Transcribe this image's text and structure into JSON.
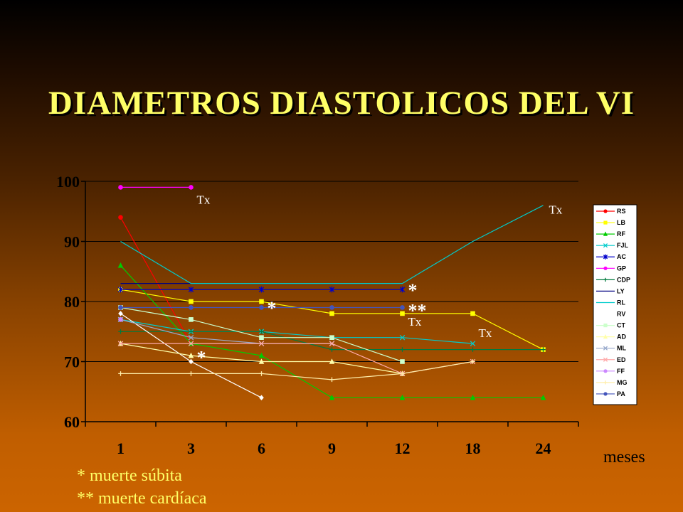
{
  "slide": {
    "title": "DIAMETROS DIASTOLICOS DEL VI",
    "x_unit": "meses",
    "footnotes": [
      "* muerte súbita",
      "** muerte cardíaca"
    ]
  },
  "chart_data": {
    "type": "line",
    "title": "DIAMETROS DIASTOLICOS DEL VI",
    "xlabel": "meses",
    "ylabel": "",
    "categories": [
      "1",
      "3",
      "6",
      "9",
      "12",
      "18",
      "24"
    ],
    "ylim": [
      60,
      100
    ],
    "yticks": [
      60,
      70,
      80,
      90,
      100
    ],
    "grid": true,
    "legend_position": "right",
    "series": [
      {
        "name": "RS",
        "color": "#ff0000",
        "marker": "circle",
        "values": [
          94,
          73,
          null,
          null,
          null,
          null,
          null
        ]
      },
      {
        "name": "LB",
        "color": "#ffff00",
        "marker": "square",
        "values": [
          82,
          80,
          80,
          78,
          78,
          78,
          72
        ]
      },
      {
        "name": "RF",
        "color": "#00cc00",
        "marker": "triangle",
        "values": [
          86,
          73,
          71,
          64,
          64,
          64,
          64
        ]
      },
      {
        "name": "FJL",
        "color": "#00cccc",
        "marker": "x",
        "values": [
          77,
          75,
          75,
          74,
          74,
          73,
          null
        ]
      },
      {
        "name": "AC",
        "color": "#0000cc",
        "marker": "star",
        "values": [
          82,
          82,
          82,
          82,
          82,
          null,
          null
        ]
      },
      {
        "name": "GP",
        "color": "#ff00ff",
        "marker": "circle",
        "values": [
          99,
          99,
          null,
          null,
          null,
          null,
          null
        ]
      },
      {
        "name": "CDP",
        "color": "#007a3d",
        "marker": "plus",
        "values": [
          75,
          75,
          75,
          72,
          72,
          72,
          72
        ]
      },
      {
        "name": "LY",
        "color": "#000080",
        "marker": "none",
        "values": [
          83,
          83,
          83,
          83,
          83,
          null,
          null
        ]
      },
      {
        "name": "RL",
        "color": "#00cccc",
        "marker": "none",
        "values": [
          90,
          83,
          83,
          83,
          83,
          90,
          96
        ]
      },
      {
        "name": "RV",
        "color": "#ffffff",
        "marker": "diamond",
        "values": [
          78,
          70,
          64,
          null,
          null,
          null,
          null
        ]
      },
      {
        "name": "CT",
        "color": "#ccffcc",
        "marker": "square",
        "values": [
          79,
          77,
          74,
          74,
          70,
          null,
          null
        ]
      },
      {
        "name": "AD",
        "color": "#ffffaa",
        "marker": "triangle",
        "values": [
          73,
          71,
          70,
          70,
          68,
          null,
          null
        ]
      },
      {
        "name": "ML",
        "color": "#99aacc",
        "marker": "x",
        "values": [
          77,
          74,
          73,
          73,
          null,
          null,
          null
        ]
      },
      {
        "name": "ED",
        "color": "#ffaaaa",
        "marker": "x",
        "values": [
          73,
          73,
          73,
          73,
          68,
          70,
          null
        ]
      },
      {
        "name": "FF",
        "color": "#cc88ff",
        "marker": "circle",
        "values": [
          77,
          null,
          null,
          null,
          null,
          null,
          null
        ]
      },
      {
        "name": "MG",
        "color": "#ffeeaa",
        "marker": "plus",
        "values": [
          68,
          68,
          68,
          67,
          68,
          70,
          null
        ]
      },
      {
        "name": "PA",
        "color": "#4455bb",
        "marker": "circle",
        "values": [
          79,
          79,
          79,
          79,
          79,
          null,
          null
        ]
      }
    ],
    "annotations": [
      {
        "text": "Tx",
        "kind": "tx",
        "x": "3",
        "y": 97
      },
      {
        "text": "Tx",
        "kind": "tx",
        "x": "24",
        "y": 95.3
      },
      {
        "text": "Tx",
        "kind": "tx",
        "x": "12",
        "y": 76.7
      },
      {
        "text": "Tx",
        "kind": "tx",
        "x": "18",
        "y": 74.8
      },
      {
        "text": "*",
        "kind": "star",
        "x": "12",
        "y": 82.5
      },
      {
        "text": "*",
        "kind": "star",
        "x": "6",
        "y": 79.5
      },
      {
        "text": "**",
        "kind": "star",
        "x": "12",
        "y": 79.1
      },
      {
        "text": "*",
        "kind": "star",
        "x": "3",
        "y": 71.3
      }
    ]
  }
}
